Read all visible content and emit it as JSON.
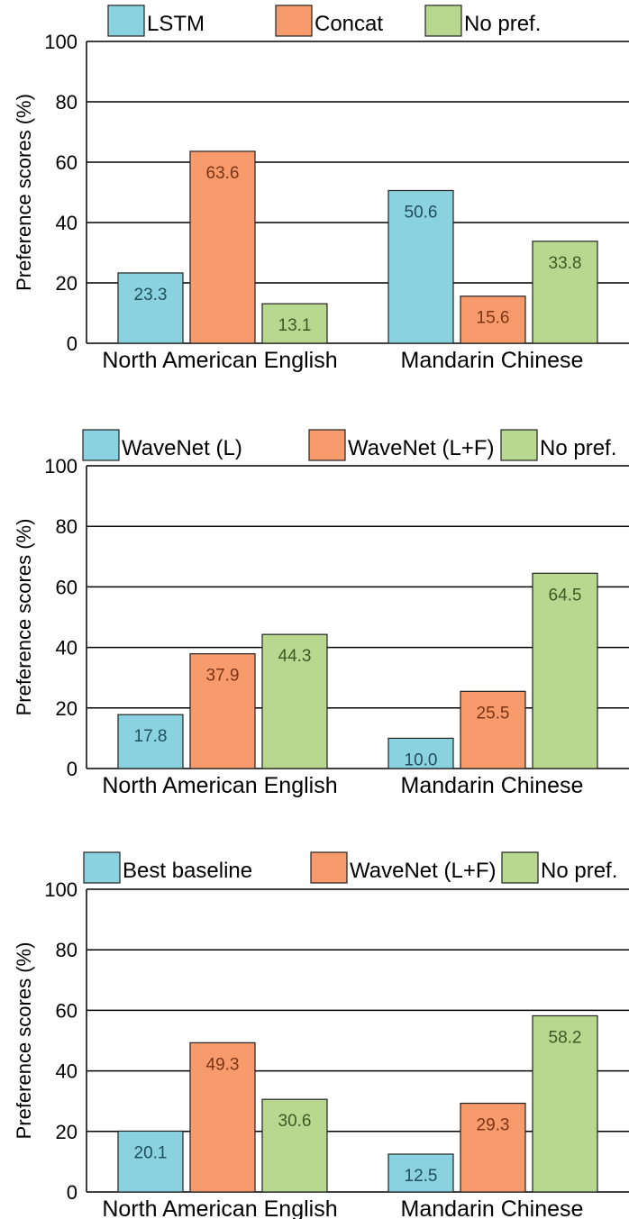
{
  "colors": {
    "series": [
      "#8ad2e0",
      "#f79b6c",
      "#b8d890"
    ],
    "data_label": [
      "#1f4e5a",
      "#7a3416",
      "#3e5a24"
    ],
    "grid": "#000000",
    "bar_stroke": "#222222"
  },
  "chart_data": [
    {
      "type": "bar",
      "categories": [
        "North American English",
        "Mandarin Chinese"
      ],
      "series": [
        {
          "name": "LSTM",
          "values": [
            23.3,
            50.6
          ]
        },
        {
          "name": "Concat",
          "values": [
            63.6,
            15.6
          ]
        },
        {
          "name": "No pref.",
          "values": [
            13.1,
            33.8
          ]
        }
      ],
      "ylabel": "Preference scores (%)",
      "ylim": [
        0,
        100
      ],
      "yticks": [
        0,
        20,
        40,
        60,
        80,
        100
      ],
      "grid": true,
      "legend": "top"
    },
    {
      "type": "bar",
      "categories": [
        "North American English",
        "Mandarin Chinese"
      ],
      "series": [
        {
          "name": "WaveNet (L)",
          "values": [
            17.8,
            10.0
          ]
        },
        {
          "name": "WaveNet (L+F)",
          "values": [
            37.9,
            25.5
          ]
        },
        {
          "name": "No pref.",
          "values": [
            44.3,
            64.5
          ]
        }
      ],
      "ylabel": "Preference scores (%)",
      "ylim": [
        0,
        100
      ],
      "yticks": [
        0,
        20,
        40,
        60,
        80,
        100
      ],
      "grid": true,
      "legend": "top"
    },
    {
      "type": "bar",
      "categories": [
        "North American English",
        "Mandarin Chinese"
      ],
      "series": [
        {
          "name": "Best baseline",
          "values": [
            20.1,
            12.5
          ]
        },
        {
          "name": "WaveNet (L+F)",
          "values": [
            49.3,
            29.3
          ]
        },
        {
          "name": "No pref.",
          "values": [
            30.6,
            58.2
          ]
        }
      ],
      "ylabel": "Preference scores (%)",
      "ylim": [
        0,
        100
      ],
      "yticks": [
        0,
        20,
        40,
        60,
        80,
        100
      ],
      "grid": true,
      "legend": "top"
    }
  ]
}
